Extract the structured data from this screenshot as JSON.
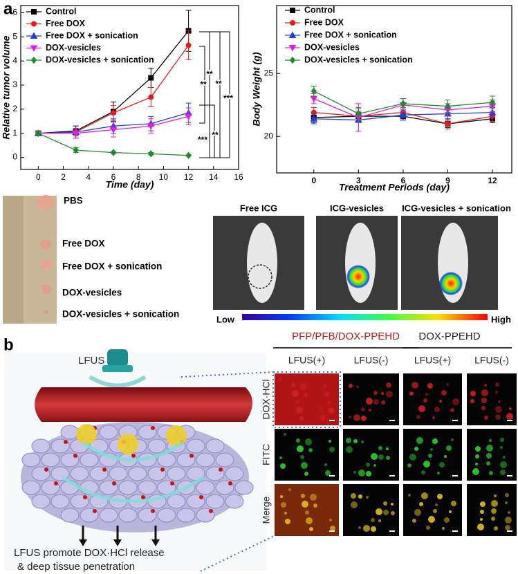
{
  "chart_data": [
    {
      "type": "line",
      "y_label": "Relative tumor volume",
      "x_label": "Time (day)",
      "x": [
        0,
        3,
        6,
        9,
        12
      ],
      "xlim": [
        -1.4,
        16
      ],
      "xticks": [
        0,
        2,
        4,
        6,
        8,
        10,
        12,
        14,
        16
      ],
      "ylim": [
        -0.5,
        6.3
      ],
      "yticks": [
        0,
        1,
        2,
        3,
        4,
        5,
        6
      ],
      "grid": false,
      "legend": "upper-left",
      "series": [
        {
          "name": "Control",
          "color": "#000000",
          "marker": "square",
          "values": [
            1.0,
            1.1,
            1.9,
            3.3,
            5.25
          ],
          "errors": [
            0.1,
            0.2,
            0.4,
            0.4,
            0.85
          ]
        },
        {
          "name": "Free DOX",
          "color": "#e41a1c",
          "marker": "circle",
          "values": [
            1.0,
            1.05,
            1.85,
            2.5,
            4.65
          ],
          "errors": [
            0.1,
            0.15,
            0.3,
            0.4,
            0.6
          ]
        },
        {
          "name": "Free DOX + sonication",
          "color": "#1f3fd6",
          "marker": "triangle",
          "values": [
            1.0,
            1.05,
            1.3,
            1.4,
            1.85
          ],
          "errors": [
            0.1,
            0.25,
            0.3,
            0.3,
            0.4
          ]
        },
        {
          "name": "DOX-vesicles",
          "color": "#e01fe0",
          "marker": "down-triangle",
          "values": [
            1.0,
            1.0,
            1.15,
            1.3,
            1.7
          ],
          "errors": [
            0.1,
            0.2,
            0.3,
            0.3,
            0.35
          ]
        },
        {
          "name": "DOX-vesicles + sonication",
          "color": "#1e8c2a",
          "marker": "diamond",
          "values": [
            1.0,
            0.3,
            0.2,
            0.15,
            0.08
          ],
          "errors": [
            0.1,
            0.1,
            0.05,
            0.05,
            0.03
          ]
        }
      ],
      "annotations": [
        "**",
        "**",
        "**",
        "***",
        "***",
        "**"
      ]
    },
    {
      "type": "line",
      "y_label": "Body Weight (g)",
      "x_label": "Treatment Periods (day)",
      "x": [
        0,
        3,
        6,
        9,
        12
      ],
      "xlim": [
        -2.5,
        13.3
      ],
      "xticks": [
        0,
        3,
        6,
        9,
        12
      ],
      "ylim": [
        17.1,
        30.4
      ],
      "yticks": [
        20,
        25
      ],
      "grid": false,
      "legend": "upper-left",
      "series": [
        {
          "name": "Control",
          "color": "#000000",
          "marker": "square",
          "values": [
            21.5,
            21.6,
            21.6,
            21.0,
            21.4
          ],
          "errors": [
            0.4,
            0.3,
            0.3,
            0.3,
            0.3
          ]
        },
        {
          "name": "Free DOX",
          "color": "#e41a1c",
          "marker": "circle",
          "values": [
            21.9,
            21.6,
            21.9,
            21.0,
            21.6
          ],
          "errors": [
            0.4,
            0.4,
            0.4,
            0.4,
            0.4
          ]
        },
        {
          "name": "Free DOX + sonication",
          "color": "#1f3fd6",
          "marker": "triangle",
          "values": [
            21.4,
            21.3,
            21.7,
            21.8,
            21.9
          ],
          "errors": [
            0.4,
            0.9,
            0.4,
            0.4,
            0.4
          ]
        },
        {
          "name": "DOX-vesicles",
          "color": "#e01fe0",
          "marker": "down-triangle",
          "values": [
            23.0,
            21.5,
            22.5,
            22.1,
            22.4
          ],
          "errors": [
            0.4,
            1.1,
            0.5,
            0.5,
            0.5
          ]
        },
        {
          "name": "DOX-vesicles + sonication",
          "color": "#1e8c2a",
          "marker": "diamond",
          "values": [
            23.6,
            21.8,
            22.6,
            22.4,
            22.7
          ],
          "errors": [
            0.4,
            0.5,
            0.4,
            0.5,
            0.5
          ]
        }
      ]
    }
  ],
  "panel_labels": [
    "a",
    "b"
  ],
  "tumor_photo": {
    "labels": [
      "PBS",
      "Free DOX",
      "Free DOX + sonication",
      "DOX-vesicles",
      "DOX-vesicles + sonication"
    ]
  },
  "imaging": {
    "columns": [
      "Free ICG",
      "ICG-vesicles",
      "ICG-vesicles + sonication"
    ],
    "scale_low": "Low",
    "scale_high": "High"
  },
  "illustration": {
    "device": "LFUS",
    "caption": [
      "LFUS promote DOX·HCl release",
      "& deep tissue penetration"
    ]
  },
  "microscopy": {
    "groups": [
      "PFP/PFB/DOX-PPEHD",
      "DOX-PPEHD"
    ],
    "columns": [
      "LFUS(+)",
      "LFUS(-)",
      "LFUS(+)",
      "LFUS(-)"
    ],
    "rows": [
      "DOX·HCl",
      "FITC",
      "Merge"
    ]
  }
}
